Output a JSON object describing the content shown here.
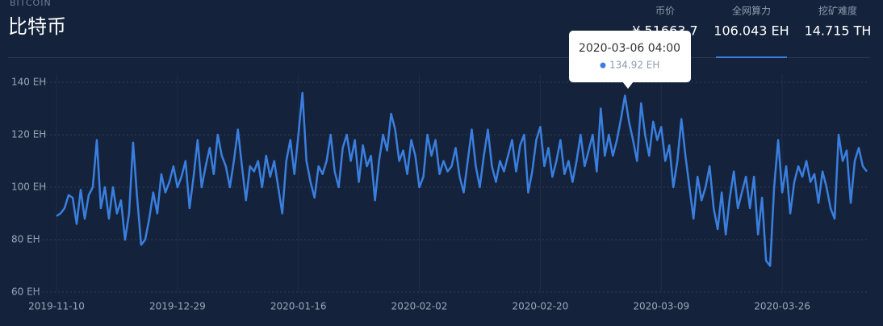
{
  "header": {
    "subtitle": "BITCOIN",
    "title": "比特币",
    "stats": [
      {
        "label": "币价",
        "value": "¥ 51663.7"
      },
      {
        "label": "全网算力",
        "value": "106.043 EH"
      },
      {
        "label": "挖矿难度",
        "value": "14.715 TH"
      }
    ]
  },
  "chart_data": {
    "type": "line",
    "categories": [
      "2019-11-10",
      null,
      null,
      null,
      null,
      null,
      null,
      null,
      null,
      null,
      null,
      null,
      null,
      null,
      null,
      null,
      null,
      null,
      null,
      null,
      null,
      null,
      null,
      null,
      null,
      null,
      null,
      null,
      null,
      null,
      "2019-12-29",
      null,
      null,
      null,
      null,
      null,
      null,
      null,
      null,
      null,
      null,
      null,
      null,
      null,
      null,
      null,
      null,
      null,
      null,
      null,
      null,
      null,
      null,
      null,
      null,
      null,
      null,
      null,
      null,
      null,
      "2020-01-16",
      null,
      null,
      null,
      null,
      null,
      null,
      null,
      null,
      null,
      null,
      null,
      null,
      null,
      null,
      null,
      null,
      null,
      null,
      null,
      null,
      null,
      null,
      null,
      null,
      null,
      null,
      null,
      null,
      null,
      "2020-02-02",
      null,
      null,
      null,
      null,
      null,
      null,
      null,
      null,
      null,
      null,
      null,
      null,
      null,
      null,
      null,
      null,
      null,
      null,
      null,
      null,
      null,
      null,
      null,
      null,
      null,
      null,
      null,
      null,
      null,
      "2020-02-20",
      null,
      null,
      null,
      null,
      null,
      null,
      null,
      null,
      null,
      null,
      null,
      null,
      null,
      null,
      null,
      null,
      null,
      null,
      null,
      null,
      null,
      null,
      null,
      null,
      null,
      null,
      null,
      null,
      null,
      "2020-03-09",
      null,
      null,
      null,
      null,
      null,
      null,
      null,
      null,
      null,
      null,
      null,
      null,
      null,
      null,
      null,
      null,
      null,
      null,
      null,
      null,
      null,
      null,
      null,
      null,
      null,
      null,
      null,
      null,
      null,
      "2020-03-26",
      null,
      null,
      null,
      null,
      null,
      null,
      null,
      null,
      null,
      null,
      null,
      null,
      null,
      null,
      null,
      null,
      null,
      null,
      null,
      null,
      null
    ],
    "values": [
      89,
      90,
      92,
      97,
      96,
      86,
      99,
      88,
      97,
      100,
      118,
      92,
      100,
      88,
      100,
      90,
      95,
      80,
      90,
      117,
      96,
      78,
      80,
      88,
      98,
      90,
      105,
      98,
      102,
      108,
      100,
      104,
      110,
      92,
      104,
      118,
      100,
      108,
      115,
      105,
      120,
      112,
      108,
      100,
      110,
      122,
      108,
      95,
      108,
      106,
      110,
      100,
      112,
      104,
      110,
      100,
      90,
      110,
      118,
      105,
      120,
      136,
      110,
      102,
      96,
      108,
      105,
      110,
      120,
      106,
      100,
      115,
      120,
      110,
      118,
      102,
      116,
      108,
      112,
      95,
      110,
      120,
      114,
      128,
      122,
      110,
      114,
      105,
      118,
      112,
      100,
      104,
      120,
      112,
      118,
      105,
      110,
      106,
      108,
      115,
      104,
      98,
      110,
      122,
      108,
      100,
      112,
      122,
      108,
      102,
      110,
      106,
      112,
      118,
      106,
      116,
      120,
      98,
      106,
      118,
      123,
      108,
      115,
      104,
      110,
      118,
      105,
      110,
      102,
      110,
      120,
      108,
      114,
      120,
      106,
      130,
      112,
      120,
      112,
      118,
      126,
      134.92,
      125,
      118,
      110,
      132,
      120,
      112,
      125,
      118,
      123,
      110,
      116,
      100,
      110,
      126,
      112,
      100,
      88,
      104,
      95,
      100,
      108,
      92,
      84,
      98,
      82,
      96,
      106,
      92,
      98,
      104,
      92,
      104,
      82,
      96,
      72,
      70,
      100,
      118,
      98,
      108,
      90,
      102,
      108,
      104,
      110,
      102,
      105,
      94,
      106,
      100,
      92,
      88,
      120,
      110,
      114,
      94,
      110,
      115,
      108,
      106
    ],
    "color": "#3a7fdf",
    "ylim": [
      60,
      140
    ],
    "yticks": [
      {
        "value": 60,
        "label": "60 EH"
      },
      {
        "value": 80,
        "label": "80 EH"
      },
      {
        "value": 100,
        "label": "100 EH"
      },
      {
        "value": 120,
        "label": "120 EH"
      },
      {
        "value": 140,
        "label": "140 EH"
      }
    ],
    "grid": true,
    "tooltip": {
      "label": "2020-03-06 04:00",
      "value_label": "134.92 EH"
    }
  }
}
